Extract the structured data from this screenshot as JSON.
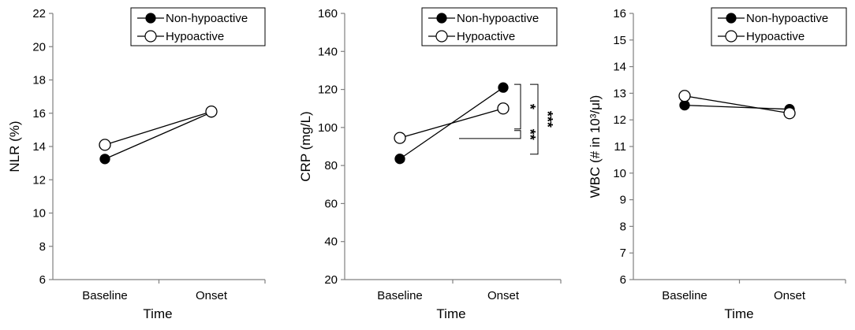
{
  "chart_data": [
    {
      "type": "line",
      "ylabel": "NLR (%)",
      "xlabel": "Time",
      "categories": [
        "Baseline",
        "Onset"
      ],
      "ylim": [
        6,
        22
      ],
      "yticks": [
        "6",
        "8",
        "10",
        "12",
        "14",
        "16",
        "18",
        "20",
        "22"
      ],
      "legend_position": "top-right",
      "series": [
        {
          "name": "Non-hypoactive",
          "marker": "filled",
          "values": [
            13.25,
            16.05
          ]
        },
        {
          "name": "Hypoactive",
          "marker": "open",
          "values": [
            14.1,
            16.1
          ]
        }
      ],
      "annotations": []
    },
    {
      "type": "line",
      "ylabel": "CRP (mg/L)",
      "xlabel": "Time",
      "categories": [
        "Baseline",
        "Onset"
      ],
      "ylim": [
        20,
        160
      ],
      "yticks": [
        "20",
        "40",
        "60",
        "80",
        "100",
        "120",
        "140",
        "160"
      ],
      "legend_position": "top-right",
      "series": [
        {
          "name": "Non-hypoactive",
          "marker": "filled",
          "values": [
            83.5,
            121
          ]
        },
        {
          "name": "Hypoactive",
          "marker": "open",
          "values": [
            94.5,
            110
          ]
        }
      ],
      "annotations": [
        {
          "text": "*",
          "from": 121,
          "to": 110
        },
        {
          "text": "**",
          "from": 110,
          "to": 97.5
        },
        {
          "text": "***",
          "from": 121,
          "to": 83.5
        }
      ]
    },
    {
      "type": "line",
      "ylabel": "WBC (# in 10³/μl)",
      "xlabel": "Time",
      "categories": [
        "Baseline",
        "Onset"
      ],
      "ylim": [
        6,
        16
      ],
      "yticks": [
        "6",
        "7",
        "8",
        "9",
        "10",
        "11",
        "12",
        "13",
        "14",
        "15",
        "16"
      ],
      "legend_position": "top-right",
      "series": [
        {
          "name": "Non-hypoactive",
          "marker": "filled",
          "values": [
            12.55,
            12.4
          ]
        },
        {
          "name": "Hypoactive",
          "marker": "open",
          "values": [
            12.9,
            12.25
          ]
        }
      ],
      "annotations": []
    }
  ]
}
